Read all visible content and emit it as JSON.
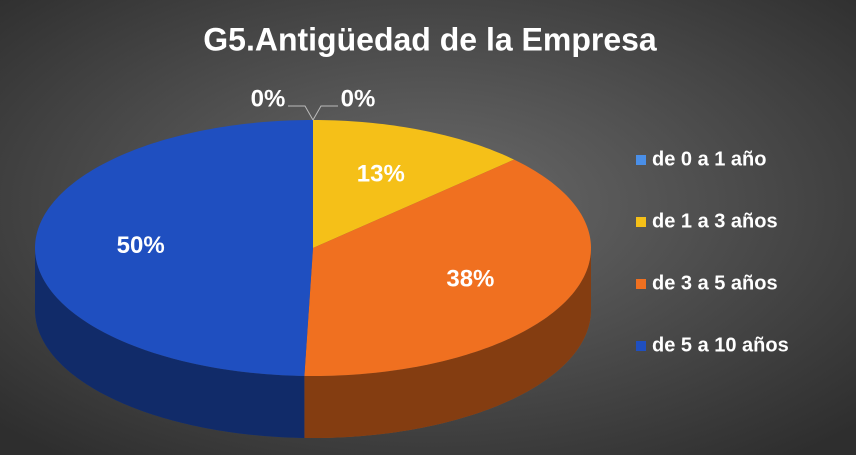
{
  "chart_data": {
    "type": "pie3d",
    "title": "G5.Antigüedad de la Empresa",
    "categories": [
      "de 0 a 1 año",
      "de 1 a 3 años",
      "de 3 a 5 años",
      "de 5 a 10 años",
      null
    ],
    "values": [
      0,
      13,
      38,
      50,
      0
    ],
    "value_labels": [
      "0%",
      "13%",
      "38%",
      "50%",
      "0%"
    ],
    "colors": [
      "#4a8fe8",
      "#f5c018",
      "#f07020",
      "#1f4fc0",
      "#7f7f7f"
    ],
    "legend": "right"
  }
}
